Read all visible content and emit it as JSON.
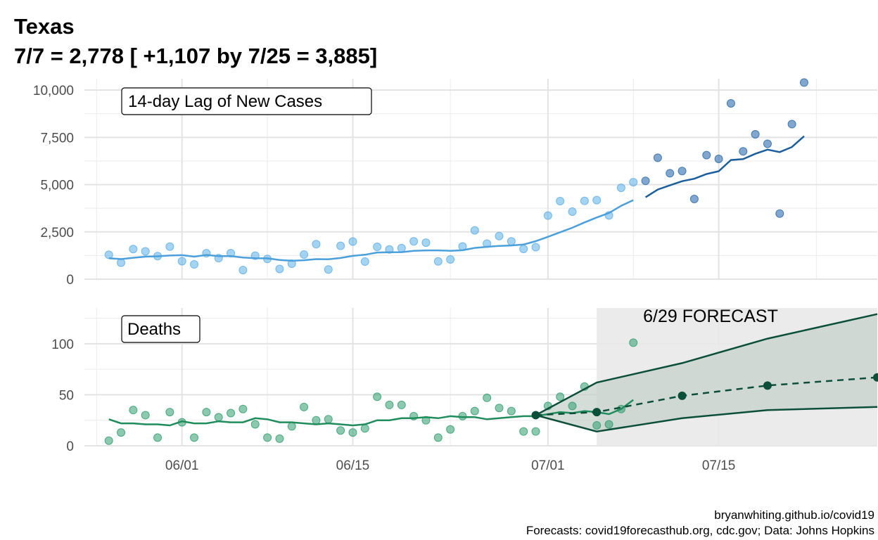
{
  "chart_data": {
    "type": "scatter",
    "title_line1": "Texas",
    "title_line2": "7/7 = 2,778 [ +1,107 by 7/25 = 3,885]",
    "caption_line1": "bryanwhiting.github.io/covid19",
    "caption_line2": "Forecasts: covid19forecasthub.org, cdc.gov; Data: Johns Hopkins",
    "x_ticks": [
      "06/01",
      "06/15",
      "07/01",
      "07/15"
    ],
    "x_range": [
      "2020-05-24",
      "2020-07-28"
    ],
    "grid": true,
    "panels": [
      {
        "name": "14-day Lag of New Cases",
        "ylim": [
          0,
          10600
        ],
        "y_ticks": [
          "0",
          "2,500",
          "5,000",
          "7,500",
          "10,000"
        ],
        "y_tick_values": [
          0,
          2500,
          5000,
          7500,
          10000
        ],
        "colors": {
          "observed_light": "#5BAEE8",
          "observed_dark": "#2F6DAE",
          "line_light": "#4B9FDB",
          "line_dark": "#1B5E9E"
        },
        "points_light": [
          [
            "2020-05-26",
            1290
          ],
          [
            "2020-05-27",
            870
          ],
          [
            "2020-05-28",
            1590
          ],
          [
            "2020-05-29",
            1470
          ],
          [
            "2020-05-30",
            1220
          ],
          [
            "2020-05-31",
            1720
          ],
          [
            "2020-06-01",
            950
          ],
          [
            "2020-06-02",
            780
          ],
          [
            "2020-06-03",
            1370
          ],
          [
            "2020-06-04",
            1110
          ],
          [
            "2020-06-05",
            1370
          ],
          [
            "2020-06-06",
            480
          ],
          [
            "2020-06-07",
            1240
          ],
          [
            "2020-06-08",
            1070
          ],
          [
            "2020-06-09",
            540
          ],
          [
            "2020-06-10",
            820
          ],
          [
            "2020-06-11",
            1300
          ],
          [
            "2020-06-12",
            1850
          ],
          [
            "2020-06-13",
            510
          ],
          [
            "2020-06-14",
            1760
          ],
          [
            "2020-06-15",
            1990
          ],
          [
            "2020-06-16",
            930
          ],
          [
            "2020-06-17",
            1710
          ],
          [
            "2020-06-18",
            1570
          ],
          [
            "2020-06-19",
            1640
          ],
          [
            "2020-06-20",
            2000
          ],
          [
            "2020-06-21",
            1930
          ],
          [
            "2020-06-22",
            940
          ],
          [
            "2020-06-23",
            1040
          ],
          [
            "2020-06-24",
            1730
          ],
          [
            "2020-06-25",
            2580
          ],
          [
            "2020-06-26",
            1880
          ],
          [
            "2020-06-27",
            2280
          ],
          [
            "2020-06-28",
            2000
          ],
          [
            "2020-06-29",
            1600
          ],
          [
            "2020-06-30",
            1690
          ],
          [
            "2020-07-01",
            3360
          ],
          [
            "2020-07-02",
            4130
          ],
          [
            "2020-07-03",
            3570
          ],
          [
            "2020-07-04",
            4140
          ],
          [
            "2020-07-05",
            4180
          ],
          [
            "2020-07-06",
            3370
          ],
          [
            "2020-07-07",
            4830
          ],
          [
            "2020-07-08",
            5130
          ]
        ],
        "points_dark": [
          [
            "2020-07-09",
            5200
          ],
          [
            "2020-07-10",
            6420
          ],
          [
            "2020-07-11",
            5600
          ],
          [
            "2020-07-12",
            5720
          ],
          [
            "2020-07-13",
            4240
          ],
          [
            "2020-07-14",
            6560
          ],
          [
            "2020-07-15",
            6360
          ],
          [
            "2020-07-16",
            9300
          ],
          [
            "2020-07-17",
            6760
          ],
          [
            "2020-07-18",
            7660
          ],
          [
            "2020-07-19",
            7160
          ],
          [
            "2020-07-20",
            3470
          ],
          [
            "2020-07-21",
            8200
          ],
          [
            "2020-07-22",
            10400
          ]
        ],
        "line_light": [
          [
            "2020-05-26",
            1110
          ],
          [
            "2020-05-27",
            1060
          ],
          [
            "2020-05-28",
            1130
          ],
          [
            "2020-05-29",
            1190
          ],
          [
            "2020-05-30",
            1210
          ],
          [
            "2020-05-31",
            1250
          ],
          [
            "2020-06-01",
            1270
          ],
          [
            "2020-06-02",
            1190
          ],
          [
            "2020-06-03",
            1280
          ],
          [
            "2020-06-04",
            1220
          ],
          [
            "2020-06-05",
            1220
          ],
          [
            "2020-06-06",
            1140
          ],
          [
            "2020-06-07",
            1110
          ],
          [
            "2020-06-08",
            1100
          ],
          [
            "2020-06-09",
            1010
          ],
          [
            "2020-06-10",
            970
          ],
          [
            "2020-06-11",
            1000
          ],
          [
            "2020-06-12",
            1060
          ],
          [
            "2020-06-13",
            1050
          ],
          [
            "2020-06-14",
            1120
          ],
          [
            "2020-06-15",
            1230
          ],
          [
            "2020-06-16",
            1290
          ],
          [
            "2020-06-17",
            1410
          ],
          [
            "2020-06-18",
            1420
          ],
          [
            "2020-06-19",
            1430
          ],
          [
            "2020-06-20",
            1500
          ],
          [
            "2020-06-21",
            1520
          ],
          [
            "2020-06-22",
            1520
          ],
          [
            "2020-06-23",
            1500
          ],
          [
            "2020-06-24",
            1530
          ],
          [
            "2020-06-25",
            1650
          ],
          [
            "2020-06-26",
            1710
          ],
          [
            "2020-06-27",
            1760
          ],
          [
            "2020-06-28",
            1780
          ],
          [
            "2020-06-29",
            1830
          ],
          [
            "2020-06-30",
            2010
          ],
          [
            "2020-07-01",
            2240
          ],
          [
            "2020-07-02",
            2480
          ],
          [
            "2020-07-03",
            2720
          ],
          [
            "2020-07-04",
            3000
          ],
          [
            "2020-07-05",
            3260
          ],
          [
            "2020-07-06",
            3500
          ],
          [
            "2020-07-07",
            3880
          ],
          [
            "2020-07-08",
            4180
          ]
        ],
        "line_dark": [
          [
            "2020-07-09",
            4330
          ],
          [
            "2020-07-10",
            4740
          ],
          [
            "2020-07-11",
            4960
          ],
          [
            "2020-07-12",
            5180
          ],
          [
            "2020-07-13",
            5310
          ],
          [
            "2020-07-14",
            5560
          ],
          [
            "2020-07-15",
            5710
          ],
          [
            "2020-07-16",
            6300
          ],
          [
            "2020-07-17",
            6350
          ],
          [
            "2020-07-18",
            6630
          ],
          [
            "2020-07-19",
            6850
          ],
          [
            "2020-07-20",
            6720
          ],
          [
            "2020-07-21",
            6990
          ],
          [
            "2020-07-22",
            7560
          ]
        ]
      },
      {
        "name": "Deaths",
        "ylim": [
          0,
          135
        ],
        "y_ticks": [
          "0",
          "50",
          "100"
        ],
        "y_tick_values": [
          0,
          50,
          100
        ],
        "colors": {
          "observed": "#2E9C6E",
          "line": "#1F8C5C",
          "forecast": "#0B4F3A",
          "band": "#C7D1CC",
          "forecast_bg": "#EBEBEB"
        },
        "points": [
          [
            "2020-05-26",
            5
          ],
          [
            "2020-05-27",
            13
          ],
          [
            "2020-05-28",
            35
          ],
          [
            "2020-05-29",
            30
          ],
          [
            "2020-05-30",
            8
          ],
          [
            "2020-05-31",
            33
          ],
          [
            "2020-06-01",
            23
          ],
          [
            "2020-06-02",
            8
          ],
          [
            "2020-06-03",
            33
          ],
          [
            "2020-06-04",
            28
          ],
          [
            "2020-06-05",
            32
          ],
          [
            "2020-06-06",
            36
          ],
          [
            "2020-06-07",
            21
          ],
          [
            "2020-06-08",
            8
          ],
          [
            "2020-06-09",
            7
          ],
          [
            "2020-06-10",
            19
          ],
          [
            "2020-06-11",
            38
          ],
          [
            "2020-06-12",
            25
          ],
          [
            "2020-06-13",
            26
          ],
          [
            "2020-06-14",
            15
          ],
          [
            "2020-06-15",
            13
          ],
          [
            "2020-06-16",
            17
          ],
          [
            "2020-06-17",
            48
          ],
          [
            "2020-06-18",
            40
          ],
          [
            "2020-06-19",
            40
          ],
          [
            "2020-06-20",
            29
          ],
          [
            "2020-06-21",
            25
          ],
          [
            "2020-06-22",
            8
          ],
          [
            "2020-06-23",
            16
          ],
          [
            "2020-06-24",
            29
          ],
          [
            "2020-06-25",
            34
          ],
          [
            "2020-06-26",
            47
          ],
          [
            "2020-06-27",
            37
          ],
          [
            "2020-06-28",
            34
          ],
          [
            "2020-06-29",
            14
          ],
          [
            "2020-06-30",
            14
          ],
          [
            "2020-07-01",
            39
          ],
          [
            "2020-07-02",
            48
          ],
          [
            "2020-07-03",
            39
          ],
          [
            "2020-07-04",
            58
          ],
          [
            "2020-07-05",
            20
          ],
          [
            "2020-07-06",
            21
          ],
          [
            "2020-07-07",
            36
          ],
          [
            "2020-07-08",
            101
          ]
        ],
        "line": [
          [
            "2020-05-26",
            26
          ],
          [
            "2020-05-27",
            22
          ],
          [
            "2020-05-28",
            22
          ],
          [
            "2020-05-29",
            21
          ],
          [
            "2020-05-30",
            21
          ],
          [
            "2020-05-31",
            20
          ],
          [
            "2020-06-01",
            24
          ],
          [
            "2020-06-02",
            22
          ],
          [
            "2020-06-03",
            22
          ],
          [
            "2020-06-04",
            24
          ],
          [
            "2020-06-05",
            23
          ],
          [
            "2020-06-06",
            23
          ],
          [
            "2020-06-07",
            27
          ],
          [
            "2020-06-08",
            26
          ],
          [
            "2020-06-09",
            23
          ],
          [
            "2020-06-10",
            23
          ],
          [
            "2020-06-11",
            22
          ],
          [
            "2020-06-12",
            21
          ],
          [
            "2020-06-13",
            22
          ],
          [
            "2020-06-14",
            21
          ],
          [
            "2020-06-15",
            20
          ],
          [
            "2020-06-16",
            21
          ],
          [
            "2020-06-17",
            25
          ],
          [
            "2020-06-18",
            25
          ],
          [
            "2020-06-19",
            27
          ],
          [
            "2020-06-20",
            27
          ],
          [
            "2020-06-21",
            28
          ],
          [
            "2020-06-22",
            27
          ],
          [
            "2020-06-23",
            29
          ],
          [
            "2020-06-24",
            28
          ],
          [
            "2020-06-25",
            28
          ],
          [
            "2020-06-26",
            26
          ],
          [
            "2020-06-27",
            27
          ],
          [
            "2020-06-28",
            28
          ],
          [
            "2020-06-29",
            29
          ],
          [
            "2020-06-30",
            29
          ],
          [
            "2020-07-01",
            31
          ],
          [
            "2020-07-02",
            33
          ],
          [
            "2020-07-03",
            32
          ],
          [
            "2020-07-04",
            34
          ],
          [
            "2020-07-05",
            33
          ],
          [
            "2020-07-06",
            31
          ],
          [
            "2020-07-07",
            36
          ],
          [
            "2020-07-08",
            45
          ]
        ],
        "forecast_label": "6/29 FORECAST",
        "forecast_start": "2020-07-05",
        "forecast_end": "2020-07-28",
        "forecast_point_dates": [
          "2020-06-30",
          "2020-07-05",
          "2020-07-12",
          "2020-07-19",
          "2020-07-28"
        ],
        "forecast_point_values": [
          30,
          33,
          49,
          59,
          67
        ],
        "forecast_upper": [
          30,
          62,
          81,
          105,
          129
        ],
        "forecast_lower": [
          30,
          14,
          27,
          35,
          38
        ]
      }
    ]
  }
}
